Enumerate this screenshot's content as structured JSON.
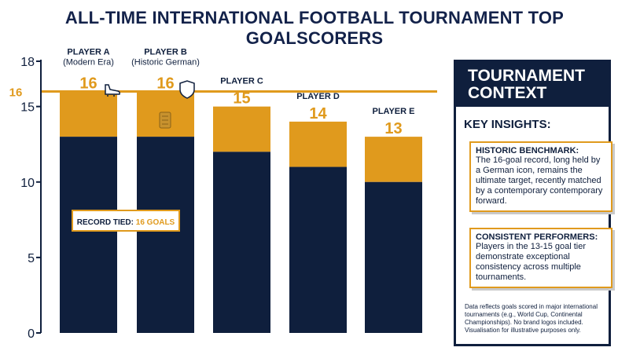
{
  "title": "ALL-TIME INTERNATIONAL FOOTBALL TOURNAMENT TOP GOALSCORERS",
  "chart_data": {
    "type": "bar",
    "categories": [
      "PLAYER A",
      "PLAYER B",
      "PLAYER C",
      "PLAYER D",
      "PLAYER E"
    ],
    "subtitles": [
      "(Modern Era)",
      "(Historic German)",
      "",
      "",
      ""
    ],
    "values": [
      16,
      16,
      15,
      14,
      13
    ],
    "value_labels": [
      "16",
      "16",
      "15",
      "14",
      "13"
    ],
    "base_values": [
      13,
      13,
      12,
      11,
      10
    ],
    "yticks": [
      0,
      5,
      10,
      15,
      18
    ],
    "ylim": [
      0,
      18
    ],
    "reference_line": {
      "value": 16,
      "label": "16"
    },
    "annotation": {
      "text": "RECORD TIED: ",
      "highlight": "16 GOALS"
    },
    "colors": {
      "base": "#0f1f3d",
      "top": "#e09a1d",
      "accent": "#e09a1d"
    }
  },
  "sidebar": {
    "title_line1": "TOURNAMENT",
    "title_line2": "CONTEXT",
    "insights_title": "KEY INSIGHTS:",
    "insight1_title": "HISTORIC BENCHMARK:",
    "insight1_body": "The 16-goal record, long held by a German icon, remains the ultimate target, recently matched by a contemporary contemporary forward.",
    "insight2_title": "CONSISTENT PERFORMERS:",
    "insight2_body": "Players in the 13-15 goal tier demonstrate exceptional consistency across multiple tournaments.",
    "footnote": "Data reflects goals scored in major international tournaments (e.g., World Cup, Continental Championships). No brand logos included. Visualisation for illustrative purposes only."
  }
}
